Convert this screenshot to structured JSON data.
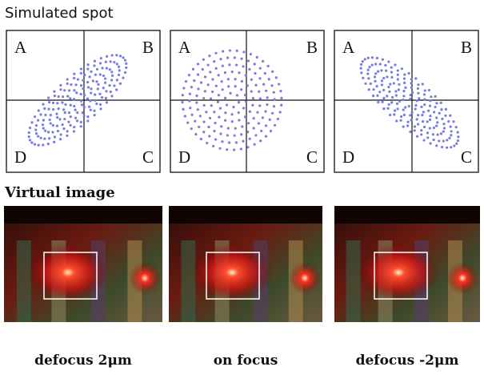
{
  "top": {
    "title": "Simulated spot",
    "panels": [
      {
        "labels": [
          "A",
          "B",
          "C",
          "D"
        ]
      },
      {
        "labels": [
          "A",
          "B",
          "C",
          "D"
        ]
      },
      {
        "labels": [
          "A",
          "B",
          "C",
          "D"
        ]
      }
    ]
  },
  "bottom": {
    "title": "Virtual image",
    "captions": [
      "defocus 2μm",
      "on focus",
      "defocus -2μm"
    ]
  }
}
